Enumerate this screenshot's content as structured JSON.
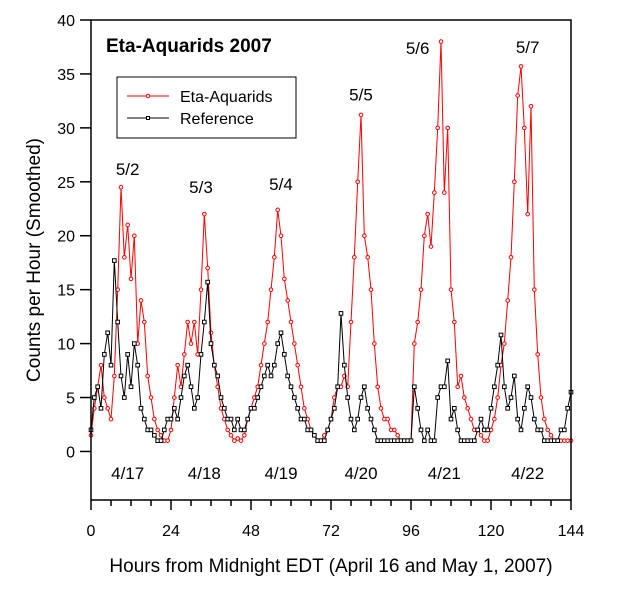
{
  "chart_data": {
    "type": "line",
    "title": "Eta-Aquarids 2007",
    "xlabel": "Hours from Midnight EDT (April 16 and May 1, 2007)",
    "ylabel": "Counts per Hour (Smoothed)",
    "xlim": [
      0,
      144
    ],
    "ylim": [
      -4.5,
      40
    ],
    "xticks": [
      0,
      24,
      48,
      72,
      96,
      120,
      144
    ],
    "yticks": [
      0,
      5,
      10,
      15,
      20,
      25,
      30,
      35,
      40
    ],
    "grid": false,
    "legend_position": "top-left",
    "x": [
      0,
      1,
      2,
      3,
      4,
      5,
      6,
      7,
      8,
      9,
      10,
      11,
      12,
      13,
      14,
      15,
      16,
      17,
      18,
      19,
      20,
      21,
      22,
      23,
      24,
      25,
      26,
      27,
      28,
      29,
      30,
      31,
      32,
      33,
      34,
      35,
      36,
      37,
      38,
      39,
      40,
      41,
      42,
      43,
      44,
      45,
      46,
      47,
      48,
      49,
      50,
      51,
      52,
      53,
      54,
      55,
      56,
      57,
      58,
      59,
      60,
      61,
      62,
      63,
      64,
      65,
      66,
      67,
      68,
      69,
      70,
      71,
      72,
      73,
      74,
      75,
      76,
      77,
      78,
      79,
      80,
      81,
      82,
      83,
      84,
      85,
      86,
      87,
      88,
      89,
      90,
      91,
      92,
      93,
      94,
      95,
      96,
      97,
      98,
      99,
      100,
      101,
      102,
      103,
      104,
      105,
      106,
      107,
      108,
      109,
      110,
      111,
      112,
      113,
      114,
      115,
      116,
      117,
      118,
      119,
      120,
      121,
      122,
      123,
      124,
      125,
      126,
      127,
      128,
      129,
      130,
      131,
      132,
      133,
      134,
      135,
      136,
      137,
      138,
      139,
      140,
      141,
      142,
      143,
      144
    ],
    "series": [
      {
        "name": "Eta-Aquarids",
        "color": "#ff0000",
        "marker": "circle",
        "values": [
          1.5,
          4,
          6,
          8,
          5,
          4,
          3,
          7,
          15,
          24.5,
          18,
          21,
          16,
          20,
          10,
          14,
          12,
          7,
          5,
          3,
          2,
          1.5,
          1,
          1,
          2,
          5,
          8,
          6,
          9,
          12,
          10,
          12,
          9,
          15,
          22,
          17,
          11,
          8,
          6,
          4,
          3,
          2,
          1.5,
          1,
          1.2,
          1,
          1.5,
          3,
          4,
          5,
          6,
          8,
          10,
          12,
          15,
          18,
          22.4,
          20,
          16,
          14,
          12,
          10,
          8,
          6,
          4,
          3,
          2,
          1.5,
          1,
          1,
          1.5,
          2,
          3,
          5,
          6,
          6,
          7,
          6,
          12,
          18,
          25,
          31.2,
          20,
          18,
          15,
          10,
          6,
          4,
          3,
          3,
          2,
          2,
          1.5,
          1,
          1,
          1,
          1,
          10,
          12,
          15,
          20,
          22,
          19,
          24,
          30,
          38,
          24,
          30,
          15,
          12,
          6,
          7,
          5,
          4,
          3,
          2,
          2,
          1.5,
          1,
          1,
          2,
          3,
          5,
          8,
          10,
          14,
          18,
          25,
          33,
          35.7,
          30,
          22,
          32,
          15,
          9,
          5,
          3,
          2,
          1.5,
          1,
          1,
          1,
          1,
          1,
          1
        ]
      },
      {
        "name": "Reference",
        "color": "#000000",
        "marker": "square",
        "values": [
          2,
          5,
          6,
          4,
          9,
          11,
          8,
          17.7,
          12,
          7,
          5,
          9,
          6,
          10,
          8,
          4,
          3,
          2,
          2,
          1.5,
          1,
          1,
          2,
          3,
          3,
          4,
          3,
          5,
          7,
          8,
          6,
          4,
          5,
          9,
          12,
          15.7,
          10,
          8,
          7,
          5,
          4,
          3,
          3,
          2,
          3,
          2,
          2,
          3,
          4,
          4,
          5,
          6,
          7,
          8,
          7,
          8,
          10,
          11,
          9,
          7,
          6,
          5,
          4,
          3,
          3,
          2,
          2,
          1.5,
          1,
          1,
          1,
          2,
          3,
          4,
          6,
          12.8,
          8,
          5,
          3,
          2,
          3,
          5,
          6,
          4,
          3,
          2,
          1,
          1,
          1,
          1,
          1,
          1,
          1,
          1,
          1,
          1,
          1,
          6,
          4,
          2,
          1,
          2,
          1,
          1,
          5,
          6,
          6,
          8.4,
          3,
          4,
          2,
          1,
          1,
          1,
          1,
          1,
          2,
          3,
          2,
          2,
          4,
          6,
          8,
          10.8,
          6,
          4,
          5,
          7,
          3,
          2,
          4,
          6,
          5,
          3,
          2,
          2,
          1,
          1,
          1,
          1,
          1,
          2,
          2,
          4,
          5.5
        ]
      }
    ],
    "annotations": [
      {
        "text": "5/2",
        "x": 11,
        "y": 26.2
      },
      {
        "text": "5/3",
        "x": 33,
        "y": 24.5
      },
      {
        "text": "5/4",
        "x": 57,
        "y": 24.8
      },
      {
        "text": "5/5",
        "x": 81,
        "y": 33.1
      },
      {
        "text": "5/6",
        "x": 98,
        "y": 37.4
      },
      {
        "text": "5/7",
        "x": 131,
        "y": 37.5
      },
      {
        "text": "4/17",
        "x": 11,
        "y": -2
      },
      {
        "text": "4/18",
        "x": 34,
        "y": -2
      },
      {
        "text": "4/19",
        "x": 57,
        "y": -2
      },
      {
        "text": "4/20",
        "x": 81,
        "y": -2
      },
      {
        "text": "4/21",
        "x": 106,
        "y": -2
      },
      {
        "text": "4/22",
        "x": 131,
        "y": -2
      }
    ]
  }
}
